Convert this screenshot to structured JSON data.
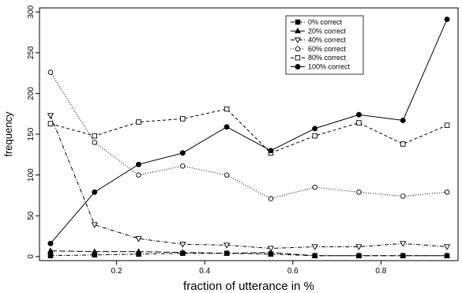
{
  "chart_data": {
    "type": "line",
    "title": "",
    "xlabel": "fraction of utterance in %",
    "ylabel": "frequency",
    "xlim": [
      0.025,
      0.975
    ],
    "ylim": [
      -5,
      305
    ],
    "xticks": [
      0.2,
      0.4,
      0.6,
      0.8
    ],
    "xtick_labels": [
      "0.2",
      "0.4",
      "0.6",
      "0.8"
    ],
    "yticks": [
      0,
      50,
      100,
      150,
      200,
      250,
      300
    ],
    "ytick_labels": [
      "0",
      "50",
      "100",
      "150",
      "200",
      "250",
      "300"
    ],
    "grid": false,
    "legend_position": "top-right",
    "x": [
      0.05,
      0.15,
      0.25,
      0.35,
      0.45,
      0.55,
      0.65,
      0.75,
      0.85,
      0.95
    ],
    "series": [
      {
        "name": "0% correct",
        "marker": "filled-square",
        "linestyle": "dash-dot",
        "values": [
          1,
          2,
          3,
          4,
          4,
          3,
          1,
          1,
          1,
          1
        ]
      },
      {
        "name": "20% correct",
        "marker": "filled-triangle",
        "linestyle": "long-dash",
        "values": [
          7,
          6,
          6,
          5,
          4,
          5,
          1,
          1,
          1,
          1
        ]
      },
      {
        "name": "40% correct",
        "marker": "open-triangle-down",
        "linestyle": "dash-dot",
        "values": [
          173,
          39,
          22,
          15,
          14,
          10,
          12,
          12,
          16,
          12
        ]
      },
      {
        "name": "60% correct",
        "marker": "open-circle",
        "linestyle": "dotted",
        "values": [
          226,
          140,
          100,
          111,
          100,
          71,
          85,
          79,
          74,
          79
        ]
      },
      {
        "name": "80% correct",
        "marker": "open-square",
        "linestyle": "dashed",
        "values": [
          163,
          148,
          165,
          169,
          181,
          127,
          148,
          164,
          138,
          161
        ]
      },
      {
        "name": "100% correct",
        "marker": "filled-circle",
        "linestyle": "solid",
        "values": [
          16,
          79,
          113,
          127,
          159,
          130,
          157,
          174,
          167,
          291
        ]
      }
    ]
  }
}
